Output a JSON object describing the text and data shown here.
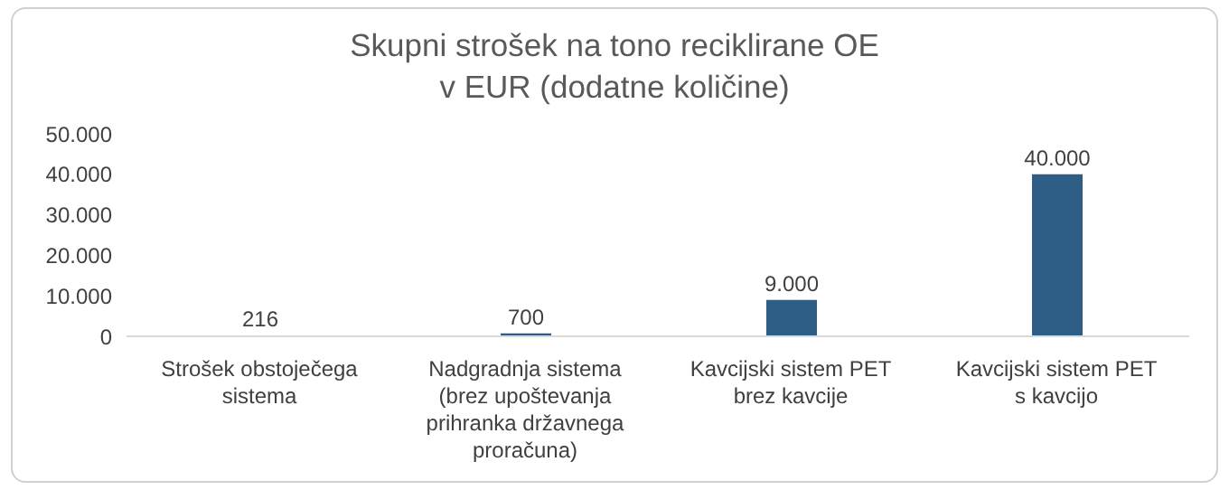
{
  "chart_data": {
    "type": "bar",
    "title": "Skupni strošek na tono reciklirane OE v EUR (dodatne količine)",
    "categories": [
      "Strošek obstoječega sistema",
      "Nadgradnja sistema (brez upoštevanja prihranka državnega proračuna)",
      "Kavcijski sistem PET brez kavcije",
      "Kavcijski sistem PET s kavcijo"
    ],
    "values": [
      216,
      700,
      9000,
      40000
    ],
    "value_labels": [
      "216",
      "700",
      "9.000",
      "40.000"
    ],
    "color": "#2e5d86",
    "ylim": [
      0,
      50000
    ],
    "yticks": [
      {
        "value": 0,
        "label": "0"
      },
      {
        "value": 10000,
        "label": "10.000"
      },
      {
        "value": 20000,
        "label": "20.000"
      },
      {
        "value": 30000,
        "label": "30.000"
      },
      {
        "value": 40000,
        "label": "40.000"
      },
      {
        "value": 50000,
        "label": "50.000"
      }
    ],
    "grid": false
  }
}
